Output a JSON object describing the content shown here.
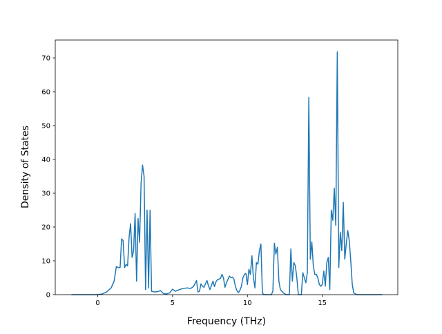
{
  "chart_data": {
    "type": "line",
    "x_label": "Frequency (THz)",
    "y_label": "Density of States",
    "color": "#1f77b4",
    "x": [
      -1.75,
      -1,
      0,
      0.3,
      0.6,
      0.9,
      1.1,
      1.25,
      1.4,
      1.5,
      1.6,
      1.7,
      1.8,
      1.9,
      2.0,
      2.1,
      2.2,
      2.3,
      2.4,
      2.5,
      2.6,
      2.7,
      2.8,
      2.9,
      3.0,
      3.1,
      3.2,
      3.3,
      3.4,
      3.5,
      3.6,
      3.8,
      4.0,
      4.2,
      4.4,
      4.6,
      4.8,
      5.0,
      5.2,
      5.4,
      5.6,
      5.8,
      6.0,
      6.2,
      6.4,
      6.6,
      6.7,
      6.8,
      6.9,
      7.0,
      7.1,
      7.3,
      7.4,
      7.5,
      7.7,
      7.8,
      7.9,
      8.0,
      8.2,
      8.3,
      8.4,
      8.5,
      8.6,
      8.8,
      8.9,
      9.0,
      9.1,
      9.2,
      9.3,
      9.4,
      9.5,
      9.6,
      9.7,
      9.8,
      9.9,
      10.0,
      10.1,
      10.2,
      10.3,
      10.4,
      10.5,
      10.6,
      10.7,
      10.8,
      10.9,
      11.0,
      11.1,
      11.6,
      11.7,
      11.8,
      11.9,
      12.0,
      12.1,
      12.2,
      12.4,
      12.6,
      12.8,
      12.9,
      13.0,
      13.1,
      13.2,
      13.3,
      13.4,
      13.6,
      13.7,
      13.8,
      13.9,
      14.0,
      14.1,
      14.2,
      14.3,
      14.4,
      14.5,
      14.6,
      14.7,
      14.8,
      14.9,
      15.0,
      15.1,
      15.2,
      15.3,
      15.4,
      15.5,
      15.6,
      15.7,
      15.8,
      15.9,
      16.0,
      16.1,
      16.2,
      16.3,
      16.4,
      16.5,
      16.6,
      16.7,
      16.8,
      16.9,
      17.0,
      17.1,
      17.3,
      18.0,
      19.0
    ],
    "values": [
      0,
      0,
      0,
      0.2,
      0.8,
      2,
      4,
      8.3,
      8,
      8,
      16.5,
      16,
      8,
      9,
      8.5,
      17,
      21,
      11,
      13,
      24,
      4,
      22.5,
      15.5,
      33,
      38.3,
      35,
      1.5,
      25,
      2,
      25,
      1,
      0.8,
      0.9,
      1.2,
      0.3,
      0.2,
      0.5,
      1.6,
      1.0,
      1.4,
      1.7,
      1.9,
      2.0,
      1.8,
      2.4,
      4.2,
      0.8,
      1,
      3.2,
      2.5,
      2.2,
      4.2,
      2.6,
      1.5,
      4,
      2.4,
      3.8,
      4.4,
      4.8,
      6,
      5,
      2.2,
      3.5,
      5.5,
      5,
      5.2,
      4.6,
      2.4,
      1.2,
      0.6,
      1.3,
      2.5,
      5,
      6,
      6.3,
      3,
      7.5,
      6,
      11.5,
      5,
      2,
      9.5,
      9,
      13,
      15,
      0.5,
      0,
      0,
      1,
      15.2,
      12,
      14,
      4,
      1.5,
      0.5,
      0,
      0,
      13.5,
      4,
      9.5,
      8.5,
      5,
      0,
      0,
      6.5,
      5,
      3.5,
      6.5,
      58.3,
      10.5,
      15.6,
      8.5,
      6,
      6,
      5,
      3,
      2.5,
      3,
      7,
      2.5,
      9.5,
      11,
      1.5,
      25,
      22,
      31.5,
      20.5,
      71.8,
      8,
      18.5,
      13,
      27.3,
      10.5,
      15,
      19,
      16,
      10,
      3,
      0.5,
      0,
      0,
      0
    ],
    "xlim": [
      -2.83,
      20.04
    ],
    "xticks": [
      0,
      5,
      10,
      15
    ],
    "ylim": [
      0,
      75.3
    ],
    "yticks": [
      0,
      10,
      20,
      30,
      40,
      50,
      60,
      70
    ]
  }
}
